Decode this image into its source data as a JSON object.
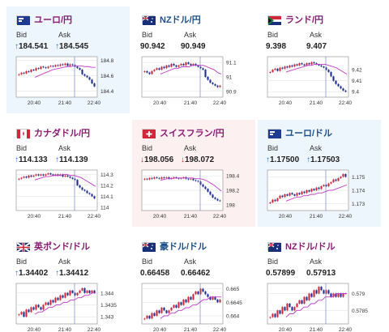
{
  "cards": [
    {
      "pair": "ユーロ/円",
      "flag": "eu-flag-icon",
      "bg": "up",
      "title_color": "purple",
      "bid_label": "Bid",
      "ask_label": "Ask",
      "bid_arrow": "↑",
      "ask_arrow": "↑",
      "bid": "184.541",
      "ask": "184.545",
      "yticks": [
        "184.8",
        "184.6",
        "184.4"
      ],
      "yt": [
        184.8,
        184.6,
        184.4
      ],
      "ymin": 184.32,
      "ymax": 184.85,
      "xticks": [
        "20:40",
        "21:40",
        "22:40"
      ],
      "close": [
        184.62,
        184.64,
        184.63,
        184.66,
        184.65,
        184.68,
        184.67,
        184.7,
        184.69,
        184.72,
        184.71,
        184.7,
        184.72,
        184.73,
        184.72,
        184.74,
        184.73,
        184.75,
        184.74,
        184.76,
        184.73,
        184.75,
        184.74,
        184.72,
        184.7,
        184.68,
        184.62,
        184.6,
        184.58,
        184.55,
        184.5,
        184.46
      ],
      "ma": [
        184.58,
        184.6,
        184.62,
        184.64,
        184.66,
        184.68,
        184.69,
        184.7,
        184.71,
        184.72,
        184.72,
        184.73,
        184.73,
        184.73,
        184.72,
        184.72,
        184.71,
        184.71
      ]
    },
    {
      "pair": "NZドル/円",
      "flag": "nz-flag-icon",
      "bg": "plain",
      "title_color": "blue",
      "bid_label": "Bid",
      "ask_label": "Ask",
      "bid_arrow": "",
      "ask_arrow": "",
      "bid": "90.942",
      "ask": "90.949",
      "yticks": [
        "91.1",
        "91",
        "90.9"
      ],
      "yt": [
        91.1,
        91.0,
        90.9
      ],
      "ymin": 90.86,
      "ymax": 91.14,
      "xticks": [
        "20:40",
        "21:40",
        "22:40"
      ],
      "close": [
        91.04,
        91.03,
        91.02,
        91.04,
        91.05,
        91.06,
        91.05,
        91.07,
        91.06,
        91.08,
        91.07,
        91.09,
        91.08,
        91.07,
        91.08,
        91.09,
        91.08,
        91.1,
        91.09,
        91.08,
        91.09,
        91.08,
        91.07,
        91.06,
        91.05,
        91.0,
        90.98,
        90.96,
        90.95,
        90.94,
        90.93,
        90.94
      ],
      "ma": [
        91.02,
        91.03,
        91.04,
        91.05,
        91.06,
        91.06,
        91.07,
        91.07,
        91.07,
        91.08,
        91.08,
        91.08,
        91.08,
        91.07,
        91.06,
        91.05,
        91.03,
        91.02
      ]
    },
    {
      "pair": "ランド/円",
      "flag": "za-flag-icon",
      "bg": "plain",
      "title_color": "purple",
      "bid_label": "Bid",
      "ask_label": "Ask",
      "bid_arrow": "",
      "ask_arrow": "",
      "bid": "9.398",
      "ask": "9.407",
      "yticks": [
        "9.42",
        "9.41",
        "9.4"
      ],
      "yt": [
        9.42,
        9.41,
        9.4
      ],
      "ymin": 9.395,
      "ymax": 9.432,
      "xticks": [
        "20:40",
        "21:40",
        "22:40"
      ],
      "close": [
        9.418,
        9.42,
        9.421,
        9.419,
        9.422,
        9.421,
        9.423,
        9.422,
        9.424,
        9.423,
        9.425,
        9.424,
        9.426,
        9.425,
        9.424,
        9.426,
        9.425,
        9.427,
        9.426,
        9.425,
        9.424,
        9.423,
        9.422,
        9.42,
        9.418,
        9.414,
        9.41,
        9.407,
        9.405,
        9.403,
        9.401,
        9.4
      ],
      "ma": [
        9.418,
        9.419,
        9.42,
        9.421,
        9.422,
        9.423,
        9.424,
        9.424,
        9.425,
        9.425,
        9.425,
        9.425,
        9.424,
        9.423,
        9.422,
        9.42,
        9.418,
        9.416
      ]
    },
    {
      "pair": "カナダドル/円",
      "flag": "ca-flag-icon",
      "bg": "plain",
      "title_color": "purple",
      "bid_label": "Bid",
      "ask_label": "Ask",
      "bid_arrow": "↑",
      "ask_arrow": "↑",
      "bid": "114.133",
      "ask": "114.139",
      "yticks": [
        "114.3",
        "114.2",
        "114.1",
        "114"
      ],
      "yt": [
        114.3,
        114.2,
        114.1,
        114.0
      ],
      "ymin": 113.97,
      "ymax": 114.34,
      "xticks": [
        "20:40",
        "21:40",
        "22:40"
      ],
      "close": [
        114.26,
        114.27,
        114.28,
        114.27,
        114.29,
        114.28,
        114.29,
        114.3,
        114.29,
        114.3,
        114.29,
        114.3,
        114.31,
        114.3,
        114.29,
        114.3,
        114.29,
        114.3,
        114.28,
        114.29,
        114.28,
        114.27,
        114.26,
        114.25,
        114.2,
        114.18,
        114.16,
        114.15,
        114.13,
        114.12,
        114.1,
        114.08
      ],
      "ma": [
        114.25,
        114.26,
        114.27,
        114.28,
        114.28,
        114.29,
        114.29,
        114.29,
        114.3,
        114.3,
        114.29,
        114.29,
        114.28,
        114.27,
        114.25,
        114.23,
        114.21,
        114.19
      ]
    },
    {
      "pair": "スイスフラン/円",
      "flag": "ch-flag-icon",
      "bg": "down",
      "title_color": "purple",
      "bid_label": "Bid",
      "ask_label": "Ask",
      "bid_arrow": "↓",
      "ask_arrow": "↓",
      "bid": "198.056",
      "ask": "198.072",
      "yticks": [
        "198.4",
        "198.2",
        "198"
      ],
      "yt": [
        198.4,
        198.2,
        198.0
      ],
      "ymin": 197.92,
      "ymax": 198.48,
      "xticks": [
        "20:40",
        "21:40",
        "22:40"
      ],
      "close": [
        198.36,
        198.35,
        198.37,
        198.36,
        198.38,
        198.37,
        198.36,
        198.38,
        198.37,
        198.38,
        198.36,
        198.37,
        198.38,
        198.37,
        198.36,
        198.37,
        198.38,
        198.36,
        198.35,
        198.36,
        198.34,
        198.33,
        198.32,
        198.28,
        198.25,
        198.22,
        198.18,
        198.14,
        198.1,
        198.08,
        198.06,
        198.05
      ],
      "ma": [
        198.34,
        198.35,
        198.36,
        198.36,
        198.37,
        198.37,
        198.37,
        198.37,
        198.37,
        198.37,
        198.36,
        198.36,
        198.35,
        198.33,
        198.3,
        198.27,
        198.23,
        198.19
      ]
    },
    {
      "pair": "ユーロ/ドル",
      "flag": "eu-flag-icon",
      "bg": "up",
      "title_color": "blue",
      "bid_label": "Bid",
      "ask_label": "Ask",
      "bid_arrow": "↑",
      "ask_arrow": "↑",
      "bid": "1.17500",
      "ask": "1.17503",
      "yticks": [
        "1.175",
        "1.174",
        "1.173"
      ],
      "yt": [
        1.175,
        1.174,
        1.173
      ],
      "ymin": 1.1725,
      "ymax": 1.1755,
      "xticks": [
        "20:40",
        "21:40",
        "22:40"
      ],
      "close": [
        1.1731,
        1.1733,
        1.1732,
        1.1734,
        1.1736,
        1.1735,
        1.1737,
        1.1736,
        1.1738,
        1.1737,
        1.1736,
        1.1738,
        1.1737,
        1.1739,
        1.1738,
        1.174,
        1.1739,
        1.1741,
        1.174,
        1.1742,
        1.1741,
        1.1743,
        1.1744,
        1.1743,
        1.1745,
        1.1746,
        1.1748,
        1.1747,
        1.1749,
        1.175,
        1.1752,
        1.175
      ],
      "ma": [
        1.1732,
        1.1733,
        1.1734,
        1.1735,
        1.1735,
        1.1736,
        1.1736,
        1.1737,
        1.1737,
        1.1738,
        1.1738,
        1.1739,
        1.174,
        1.174,
        1.1741,
        1.1742,
        1.1743,
        1.1744
      ]
    },
    {
      "pair": "英ポンド/ドル",
      "flag": "uk-flag-icon",
      "bg": "plain",
      "title_color": "purple",
      "bid_label": "Bid",
      "ask_label": "Ask",
      "bid_arrow": "↑",
      "ask_arrow": "↑",
      "bid": "1.34402",
      "ask": "1.34412",
      "yticks": [
        "1.344",
        "1.3435",
        "1.343"
      ],
      "yt": [
        1.344,
        1.3435,
        1.343
      ],
      "ymin": 1.3427,
      "ymax": 1.3444,
      "xticks": [
        "20:40",
        "21:40",
        "22:40"
      ],
      "close": [
        1.3431,
        1.3432,
        1.343,
        1.3433,
        1.3432,
        1.3434,
        1.3433,
        1.3435,
        1.3434,
        1.3433,
        1.3435,
        1.3436,
        1.3435,
        1.3437,
        1.3436,
        1.3438,
        1.3437,
        1.3439,
        1.3438,
        1.344,
        1.3439,
        1.3441,
        1.344,
        1.3439,
        1.344,
        1.3441,
        1.3442,
        1.344,
        1.3441,
        1.344,
        1.3441,
        1.344
      ],
      "ma": [
        1.3431,
        1.3432,
        1.3432,
        1.3433,
        1.3434,
        1.3434,
        1.3435,
        1.3435,
        1.3436,
        1.3436,
        1.3437,
        1.3437,
        1.3438,
        1.3438,
        1.3439,
        1.3439,
        1.344,
        1.344
      ]
    },
    {
      "pair": "豪ドル/ドル",
      "flag": "au-flag-icon",
      "bg": "plain",
      "title_color": "blue",
      "bid_label": "Bid",
      "ask_label": "Ask",
      "bid_arrow": "",
      "ask_arrow": "",
      "bid": "0.66458",
      "ask": "0.66462",
      "yticks": [
        "0.665",
        "0.6645",
        "0.664"
      ],
      "yt": [
        0.665,
        0.6645,
        0.664
      ],
      "ymin": 0.6637,
      "ymax": 0.6652,
      "xticks": [
        "20:40",
        "21:40",
        "22:40"
      ],
      "close": [
        0.6639,
        0.664,
        0.6639,
        0.6641,
        0.664,
        0.6642,
        0.6641,
        0.6643,
        0.6642,
        0.6641,
        0.6642,
        0.6643,
        0.6644,
        0.6643,
        0.6645,
        0.6644,
        0.6646,
        0.6645,
        0.6647,
        0.6646,
        0.6648,
        0.6649,
        0.6648,
        0.665,
        0.6649,
        0.6648,
        0.6647,
        0.6646,
        0.6647,
        0.6646,
        0.6645,
        0.6646
      ],
      "ma": [
        0.6639,
        0.664,
        0.664,
        0.6641,
        0.6641,
        0.6642,
        0.6642,
        0.6643,
        0.6643,
        0.6644,
        0.6644,
        0.6645,
        0.6646,
        0.6646,
        0.6647,
        0.6647,
        0.6647,
        0.6647
      ]
    },
    {
      "pair": "NZドル/ドル",
      "flag": "nz-flag-icon",
      "bg": "plain",
      "title_color": "purple",
      "bid_label": "Bid",
      "ask_label": "Ask",
      "bid_arrow": "",
      "ask_arrow": "",
      "bid": "0.57899",
      "ask": "0.57913",
      "yticks": [
        "0.579",
        "0.5785"
      ],
      "yt": [
        0.579,
        0.5785
      ],
      "ymin": 0.5781,
      "ymax": 0.5793,
      "xticks": [
        "20:40",
        "21:40",
        "22:40"
      ],
      "close": [
        0.5783,
        0.5784,
        0.5783,
        0.5785,
        0.5784,
        0.5786,
        0.5785,
        0.5787,
        0.5786,
        0.5785,
        0.5786,
        0.5787,
        0.5788,
        0.5787,
        0.5789,
        0.5788,
        0.579,
        0.5789,
        0.5791,
        0.579,
        0.5792,
        0.5791,
        0.579,
        0.5791,
        0.579,
        0.5789,
        0.579,
        0.5789,
        0.579,
        0.5789,
        0.579,
        0.579
      ],
      "ma": [
        0.5783,
        0.5784,
        0.5784,
        0.5785,
        0.5785,
        0.5786,
        0.5786,
        0.5787,
        0.5787,
        0.5788,
        0.5788,
        0.5789,
        0.5789,
        0.5789,
        0.579,
        0.579,
        0.579,
        0.579
      ]
    }
  ],
  "colors": {
    "up_candle": "#d0283a",
    "down_candle": "#1c2f8f",
    "ma_line": "#c23ac9",
    "purple_title": "#8b1a74",
    "blue_title": "#1a4f8a",
    "arrow_up": "#1a6fd0",
    "arrow_down": "#d02020"
  }
}
